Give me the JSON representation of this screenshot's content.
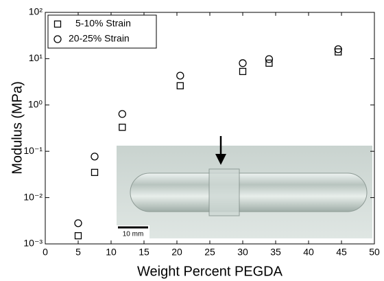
{
  "chart_data": {
    "type": "scatter",
    "x_label": "Weight Percent PEGDA",
    "y_label": "Modulus (MPa)",
    "x": [
      5,
      7.5,
      11.7,
      20.5,
      30,
      34,
      44.5
    ],
    "series": [
      {
        "name": "5-10% Strain",
        "marker": "square",
        "color": "#000000",
        "values": [
          0.0015,
          0.035,
          0.33,
          2.6,
          5.3,
          8,
          14
        ]
      },
      {
        "name": "20-25% Strain",
        "marker": "circle",
        "color": "#000000",
        "values": [
          0.0028,
          0.077,
          0.64,
          4.3,
          8,
          9.8,
          16
        ]
      }
    ],
    "xlim": [
      0,
      50
    ],
    "xticks": [
      0,
      5,
      10,
      15,
      20,
      25,
      30,
      35,
      40,
      45,
      50
    ],
    "ylim": [
      0.001,
      100
    ],
    "y_scale": "log",
    "yticks": [
      {
        "value": 0.001,
        "label": "10⁻³"
      },
      {
        "value": 0.01,
        "label": "10⁻²"
      },
      {
        "value": 0.1,
        "label": "10⁻¹"
      },
      {
        "value": 1,
        "label": "10⁰"
      },
      {
        "value": 10,
        "label": "10¹"
      },
      {
        "value": 100,
        "label": "10²"
      }
    ],
    "legend_position": "upper-left",
    "inset_scale_label": "10 mm"
  }
}
